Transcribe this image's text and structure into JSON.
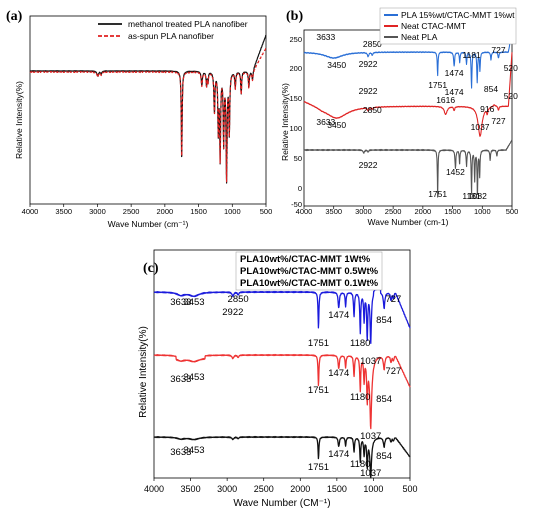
{
  "colors": {
    "black": "#111111",
    "red": "#e02424",
    "red_dash": "#e02020",
    "blue": "#2a6fd6",
    "blue_c": "#1a1adc",
    "gray": "#555555",
    "red_b": "#ee3333"
  },
  "chart_data": [
    {
      "id": "a",
      "type": "line",
      "panel_label": "(a)",
      "xlabel": "Wave Number (cm⁻¹)",
      "ylabel": "Relative Intensity(%)",
      "xlim": [
        4000,
        500
      ],
      "x_ticks": [
        4000,
        3500,
        3000,
        2500,
        2000,
        1500,
        1000,
        500
      ],
      "legend_position": "top-right",
      "series": [
        {
          "name": "methanol treated PLA nanofiber",
          "style": "solid",
          "color_key": "black"
        },
        {
          "name": "as-spun PLA nanofiber",
          "style": "dashed",
          "color_key": "red_dash"
        }
      ]
    },
    {
      "id": "b",
      "type": "line",
      "panel_label": "(b)",
      "xlabel": "Wave Number (cm-1)",
      "ylabel": "Relative Intensity(%)",
      "xlim": [
        4000,
        500
      ],
      "x_ticks": [
        4000,
        3500,
        3000,
        2500,
        2000,
        1500,
        1000,
        500
      ],
      "legend_position": "top-right",
      "series": [
        {
          "name": "PLA 15%wt/CTAC-MMT 1%wt",
          "color_key": "blue",
          "annotations": [
            "3633",
            "3450",
            "2850",
            "2922",
            "1751",
            "1474",
            "1181",
            "854",
            "727",
            "520"
          ]
        },
        {
          "name": "Neat CTAC-MMT",
          "color_key": "red",
          "annotations": [
            "3633",
            "3450",
            "2922",
            "2850",
            "1616",
            "1474",
            "1037",
            "916",
            "727",
            "520"
          ]
        },
        {
          "name": "Neat PLA",
          "color_key": "gray",
          "annotations": [
            "2922",
            "1751",
            "1452",
            "1181",
            "1082"
          ]
        }
      ]
    },
    {
      "id": "c",
      "type": "line",
      "panel_label": "(c)",
      "xlabel": "Wave Number (CM⁻¹)",
      "ylabel": "Relative Intensity(%)",
      "xlim": [
        4000,
        500
      ],
      "x_ticks": [
        4000,
        3500,
        3000,
        2500,
        2000,
        1500,
        1000,
        500
      ],
      "legend_position": "top-left",
      "series": [
        {
          "name": "PLA10wt%/CTAC-MMT 1Wt%",
          "color_key": "blue_c",
          "annotations": [
            "3633",
            "3453",
            "2850",
            "2922",
            "1751",
            "1474",
            "1180",
            "1037",
            "854",
            "727"
          ]
        },
        {
          "name": "PLA10wt%/CTAC-MMT 0.5Wt%",
          "color_key": "red_b",
          "annotations": [
            "3633",
            "3453",
            "1751",
            "1474",
            "1180",
            "1037",
            "854",
            "727"
          ]
        },
        {
          "name": "PLA10wt%/CTAC-MMT 0.1Wt%",
          "color_key": "black",
          "annotations": [
            "3633",
            "3453",
            "1751",
            "1474",
            "1180",
            "1037",
            "854"
          ]
        }
      ]
    }
  ]
}
